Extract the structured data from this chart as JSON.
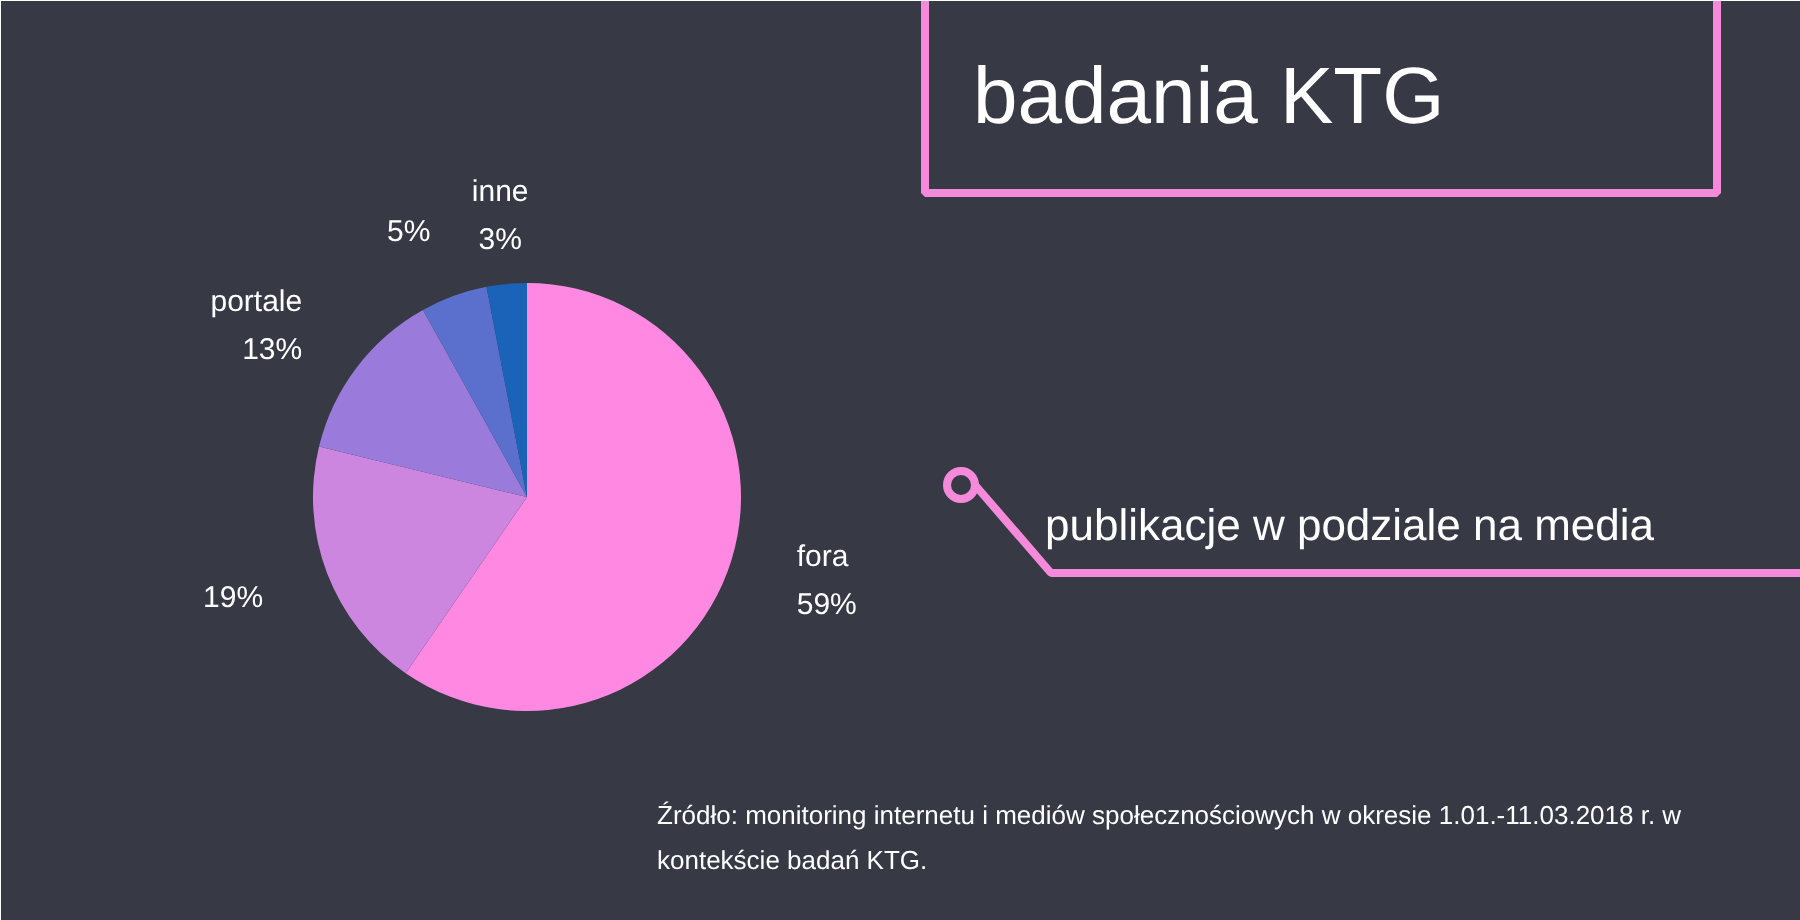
{
  "chart_data": {
    "type": "pie",
    "title": "badania KTG",
    "subtitle": "publikacje w podziale na media",
    "categories": [
      "fora",
      null,
      "portale",
      null,
      "inne"
    ],
    "values": [
      59,
      19,
      13,
      5,
      3
    ],
    "colors": [
      "#ff88e2",
      "#cc86e0",
      "#9a7bdb",
      "#5a70cc",
      "#1a63b8"
    ],
    "value_labels": [
      "59%",
      "19%",
      "13%",
      "5%",
      "3%"
    ],
    "annotations": [
      "Źródło: monitoring internetu i mediów społecznościowych w okresie 1.01.-11.03.2018 r. w kontekście badań KTG."
    ]
  }
}
